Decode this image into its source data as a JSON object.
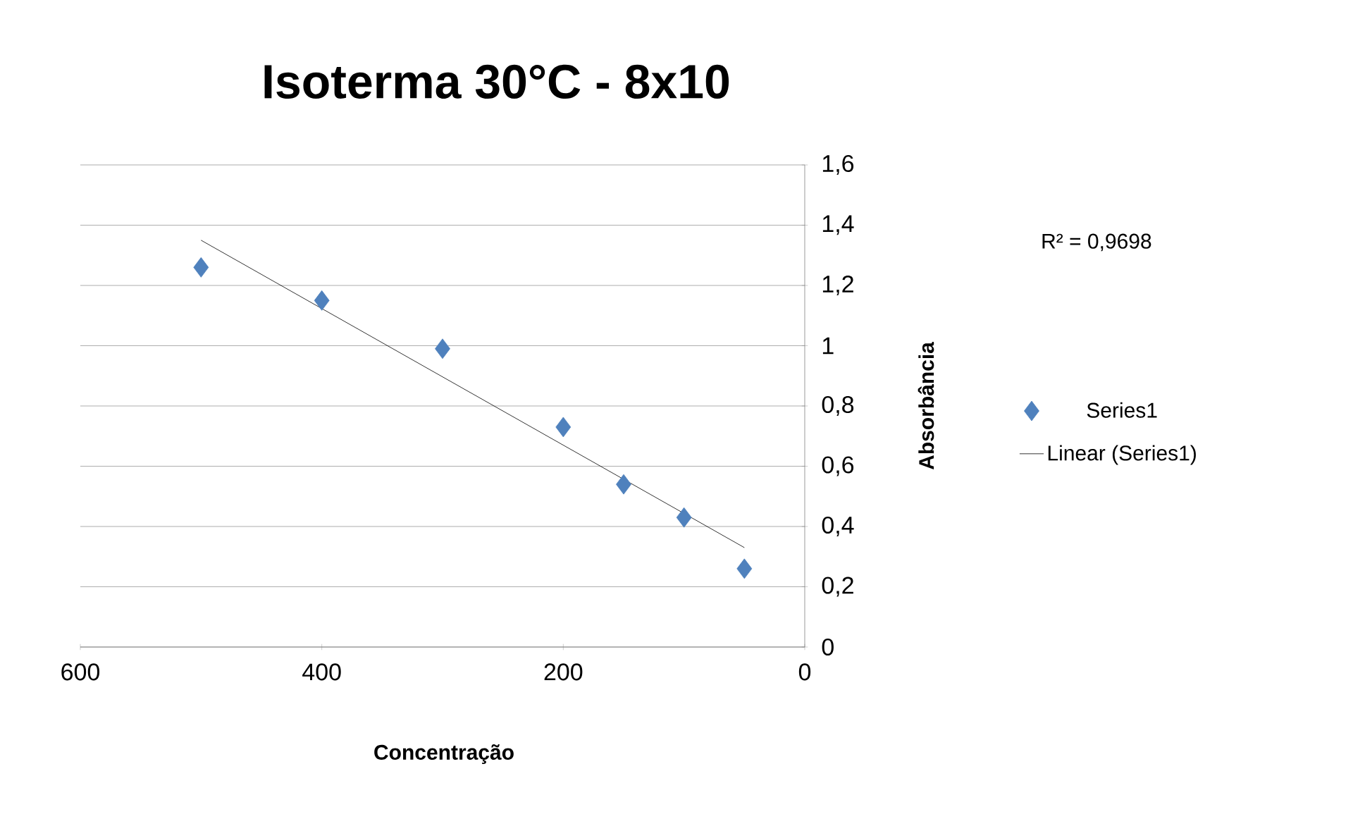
{
  "chart_data": {
    "type": "scatter",
    "title": "Isoterma 30°C - 8x10",
    "xlabel": "Concentração",
    "ylabel": "Absorbância",
    "xlim": [
      600,
      0
    ],
    "xticks": [
      0,
      200,
      400,
      600
    ],
    "ylim": [
      0,
      1.6
    ],
    "yticks": [
      0,
      {
        "value": 0.2,
        "label": "0,2"
      },
      {
        "value": 0.4,
        "label": "0,4"
      },
      {
        "value": 0.6,
        "label": "0,6"
      },
      {
        "value": 0.8,
        "label": "0,8"
      },
      1,
      {
        "value": 1.2,
        "label": "1,2"
      },
      {
        "value": 1.4,
        "label": "1,4"
      },
      {
        "value": 1.6,
        "label": "1,6"
      }
    ],
    "grid": "y",
    "legend": "right",
    "annotations": [
      "R² = 0,9698"
    ],
    "series": [
      {
        "name": "Series1",
        "marker": "diamond",
        "color": "#4f81bd",
        "x": [
          500,
          400,
          300,
          200,
          150,
          100,
          50
        ],
        "values": [
          1.26,
          1.15,
          0.99,
          0.73,
          0.54,
          0.43,
          0.26
        ]
      },
      {
        "name": "Linear (Series1)",
        "type": "line",
        "marker": "none",
        "color": "#000000",
        "x": [
          500,
          50
        ],
        "values": [
          1.35,
          0.33
        ]
      }
    ]
  }
}
